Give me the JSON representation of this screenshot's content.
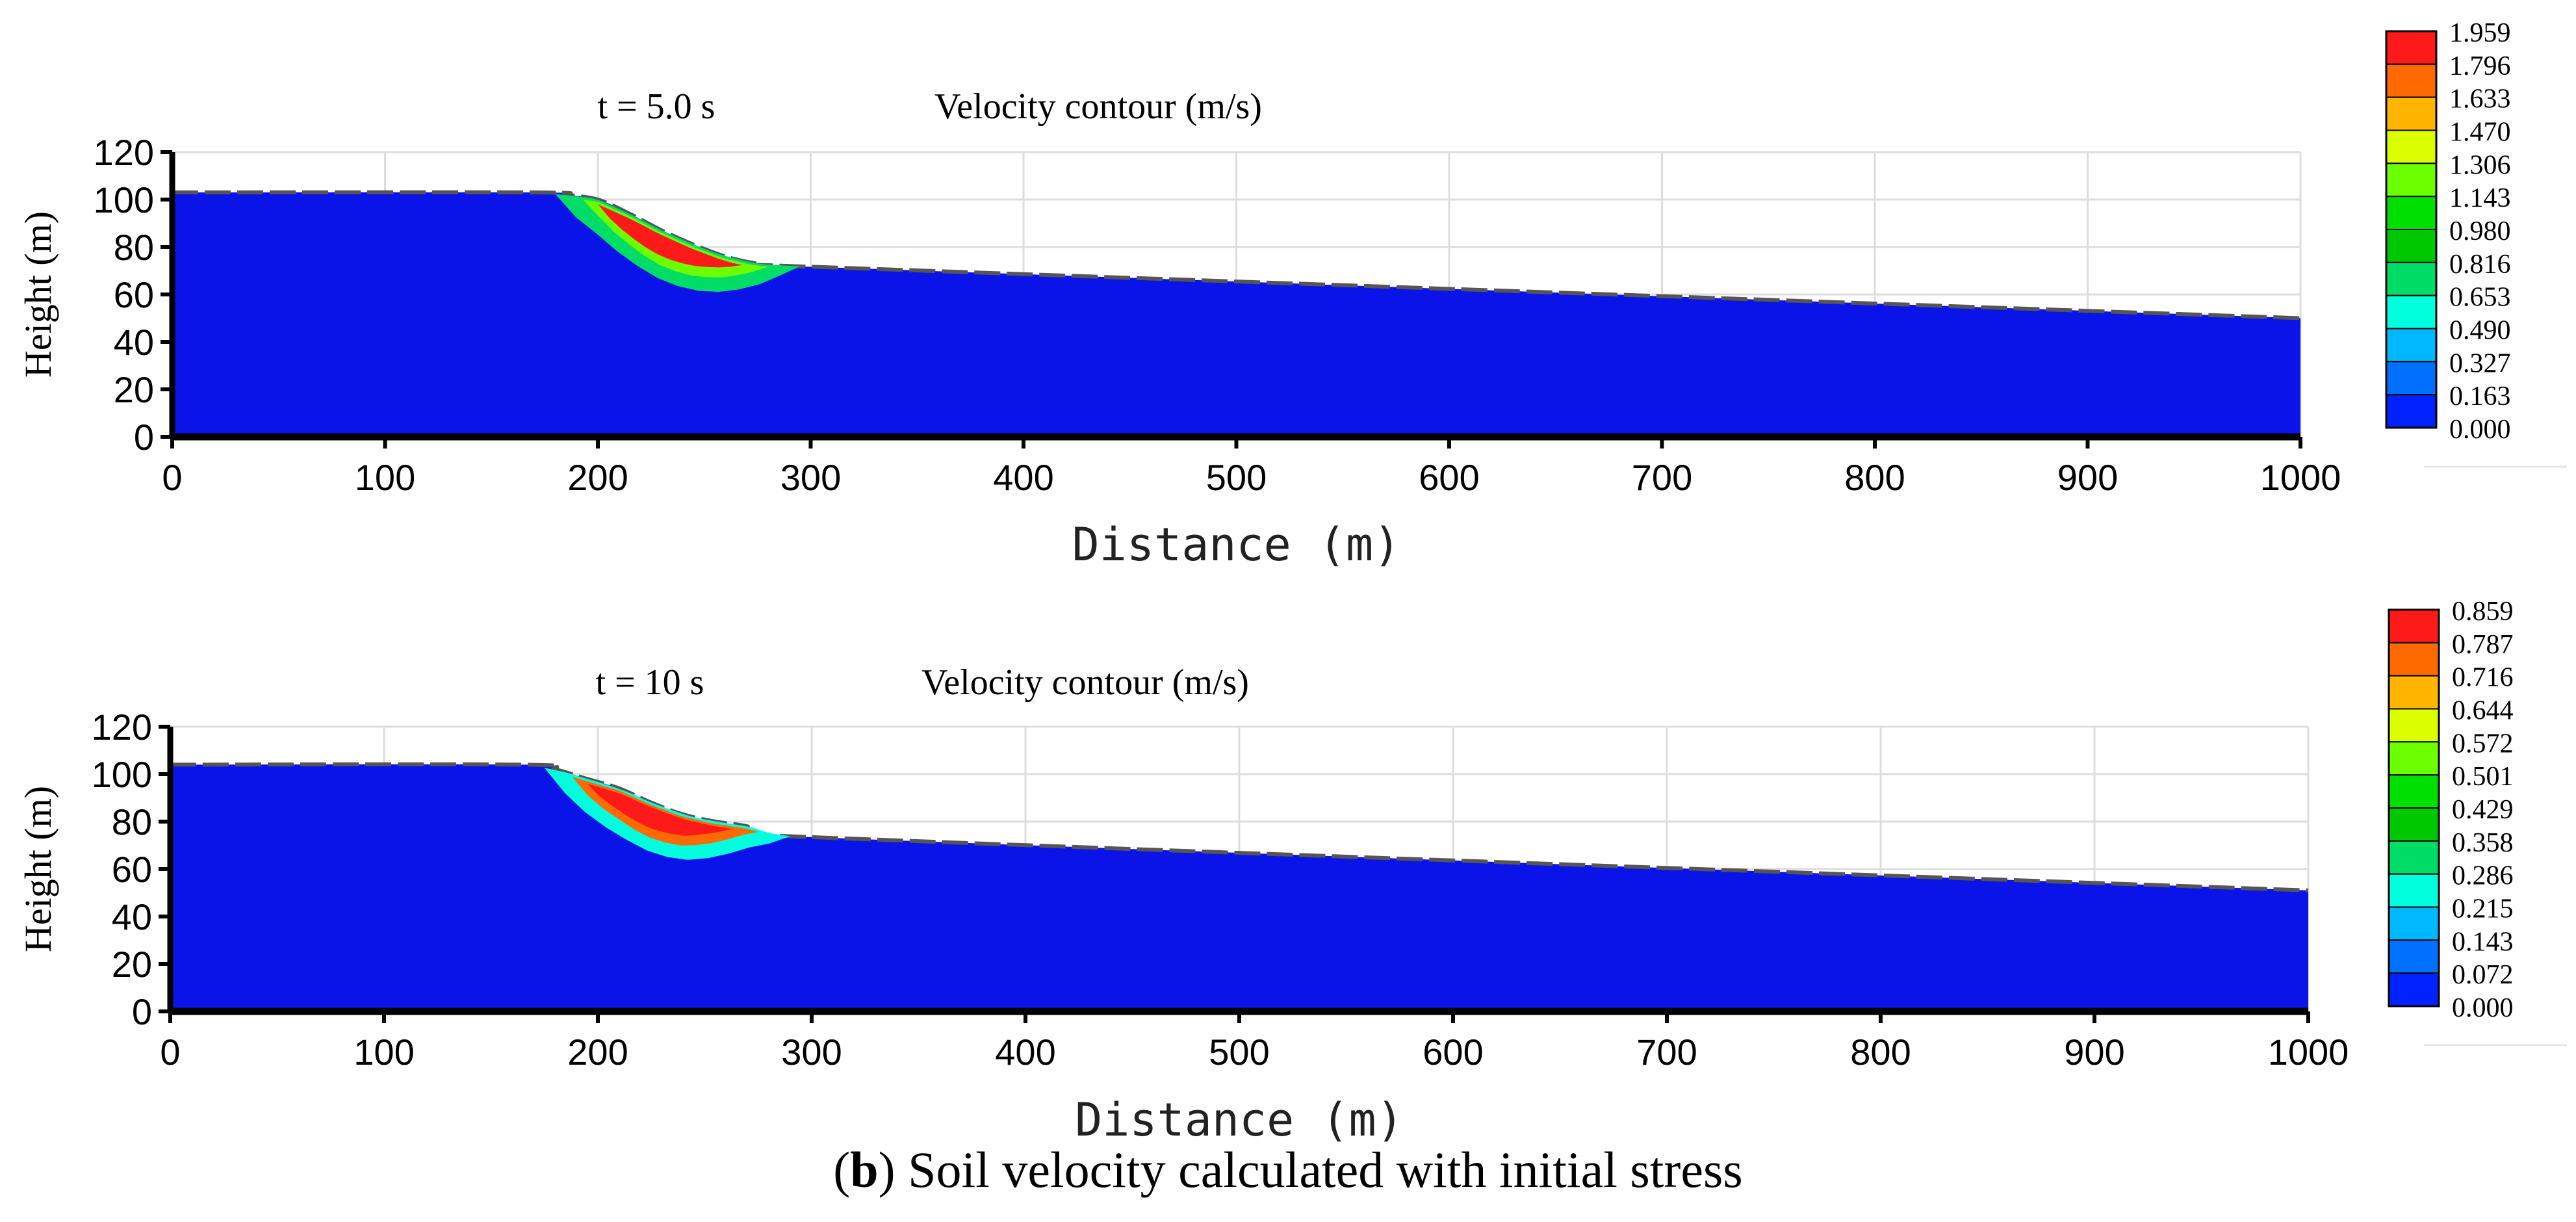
{
  "caption": {
    "label": "b",
    "open_paren": "(",
    "close_paren": ")",
    "text": " Soil velocity calculated with initial stress"
  },
  "chart_data": [
    {
      "type": "area",
      "time_label": "t = 5.0 s",
      "title": "Velocity contour  (m/s)",
      "xlabel": "Distance (m)",
      "ylabel": "Height  (m)",
      "xlim": [
        0,
        1000
      ],
      "ylim": [
        0,
        120
      ],
      "xticks": [
        0,
        100,
        200,
        300,
        400,
        500,
        600,
        700,
        800,
        900,
        1000
      ],
      "yticks": [
        0,
        20,
        40,
        60,
        80,
        100,
        120
      ],
      "grid": true,
      "ground_profile": {
        "x": [
          0,
          170,
          185,
          200,
          215,
          230,
          245,
          260,
          275,
          290,
          1000
        ],
        "y": [
          103,
          103,
          102,
          100,
          94,
          87,
          81,
          76,
          73,
          72,
          50
        ]
      },
      "slide_zone_values": {
        "outer": 0.816,
        "middle": 1.306,
        "core": 1.959
      },
      "colorbar": {
        "ticks": [
          "1.959",
          "1.796",
          "1.633",
          "1.470",
          "1.306",
          "1.143",
          "0.980",
          "0.816",
          "0.653",
          "0.490",
          "0.327",
          "0.163",
          "0.000"
        ],
        "colors": [
          "#ff1a1a",
          "#ff6a00",
          "#ffb400",
          "#dcff00",
          "#6cff00",
          "#00e000",
          "#00c800",
          "#00dd66",
          "#00ffdd",
          "#00b8ff",
          "#0070ff",
          "#0022ff"
        ]
      }
    },
    {
      "type": "area",
      "time_label": "t = 10 s",
      "title": "Velocity contour  (m/s)",
      "xlabel": "Distance (m)",
      "ylabel": "Height  (m)",
      "xlim": [
        0,
        1000
      ],
      "ylim": [
        0,
        120
      ],
      "xticks": [
        0,
        100,
        200,
        300,
        400,
        500,
        600,
        700,
        800,
        900,
        1000
      ],
      "yticks": [
        0,
        20,
        40,
        60,
        80,
        100,
        120
      ],
      "grid": true,
      "ground_profile": {
        "x": [
          0,
          165,
          180,
          195,
          210,
          225,
          240,
          255,
          270,
          285,
          1000
        ],
        "y": [
          104,
          104,
          102,
          98,
          94,
          88,
          83,
          80,
          78,
          74,
          51
        ]
      },
      "slide_zone_values": {
        "outer": 0.286,
        "middle": 0.716,
        "core": 0.859
      },
      "colorbar": {
        "ticks": [
          "0.859",
          "0.787",
          "0.716",
          "0.644",
          "0.572",
          "0.501",
          "0.429",
          "0.358",
          "0.286",
          "0.215",
          "0.143",
          "0.072",
          "0.000"
        ],
        "colors": [
          "#ff1a1a",
          "#ff6a00",
          "#ffb400",
          "#dcff00",
          "#6cff00",
          "#00e000",
          "#00c800",
          "#00dd66",
          "#00ffdd",
          "#00b8ff",
          "#0070ff",
          "#0022ff"
        ]
      }
    }
  ]
}
